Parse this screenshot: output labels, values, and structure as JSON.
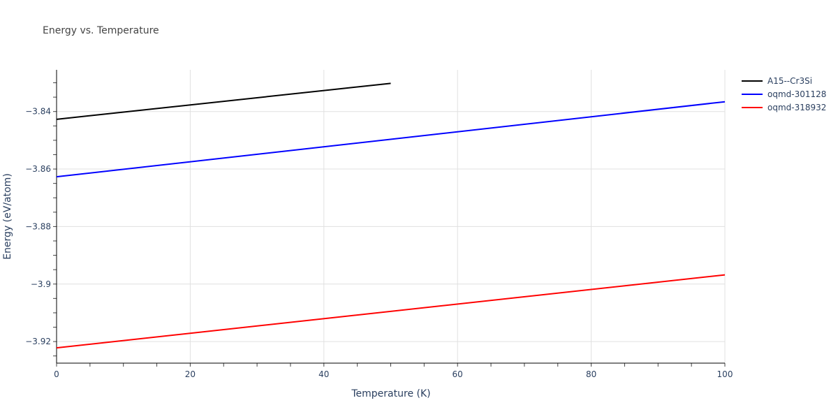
{
  "title": "Energy vs. Temperature",
  "chart_data": {
    "type": "line",
    "title": "Energy vs. Temperature",
    "xlabel": "Temperature (K)",
    "ylabel": "Energy (eV/atom)",
    "xlim": [
      0,
      100
    ],
    "ylim": [
      -3.9275,
      -3.8255
    ],
    "x_ticks": [
      0,
      20,
      40,
      60,
      80,
      100
    ],
    "x_tick_labels": [
      "0",
      "20",
      "40",
      "60",
      "80",
      "100"
    ],
    "y_ticks": [
      -3.84,
      -3.86,
      -3.88,
      -3.9,
      -3.92
    ],
    "y_tick_labels": [
      "−3.84",
      "−3.86",
      "−3.88",
      "−3.9",
      "−3.92"
    ],
    "grid": true,
    "legend_position": "right",
    "series": [
      {
        "name": "A15--Cr3Si",
        "color": "#000000",
        "x": [
          0,
          50
        ],
        "y": [
          -3.8427,
          -3.8302
        ]
      },
      {
        "name": "oqmd-301128",
        "color": "#0000ff",
        "x": [
          0,
          100
        ],
        "y": [
          -3.8627,
          -3.8366
        ]
      },
      {
        "name": "oqmd-318932",
        "color": "#ff0000",
        "x": [
          0,
          100
        ],
        "y": [
          -3.9222,
          -3.8968
        ]
      }
    ]
  }
}
